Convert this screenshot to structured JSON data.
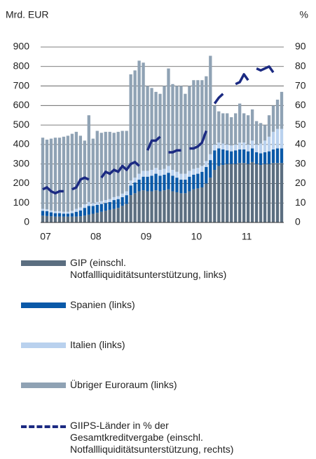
{
  "chart_data": {
    "type": "bar",
    "ylabel": "Mrd. EUR",
    "y2label": "%",
    "categories": [
      "07",
      null,
      null,
      null,
      null,
      null,
      null,
      null,
      null,
      null,
      null,
      null,
      "08",
      null,
      null,
      null,
      null,
      null,
      null,
      null,
      null,
      null,
      null,
      null,
      "09",
      null,
      null,
      null,
      null,
      null,
      null,
      null,
      null,
      null,
      null,
      null,
      "10",
      null,
      null,
      null,
      null,
      null,
      null,
      null,
      null,
      null,
      null,
      null,
      "11",
      null,
      null,
      null,
      null,
      null,
      null,
      null,
      null,
      null
    ],
    "stacked": true,
    "series": [
      {
        "name": "GIP (einschl.\nNotfallliquiditätsunterstützung, links)",
        "type": "bar",
        "color": "#5b6e80",
        "values": [
          35,
          33,
          32,
          30,
          30,
          30,
          30,
          30,
          30,
          32,
          35,
          40,
          45,
          50,
          55,
          60,
          65,
          70,
          75,
          85,
          95,
          140,
          150,
          160,
          165,
          160,
          160,
          165,
          160,
          165,
          170,
          160,
          155,
          150,
          150,
          160,
          170,
          175,
          180,
          200,
          230,
          270,
          290,
          295,
          300,
          300,
          300,
          305,
          305,
          300,
          310,
          300,
          295,
          300,
          300,
          305,
          305,
          305
        ]
      },
      {
        "name": "Spanien (links)",
        "type": "bar",
        "color": "#0a59a8",
        "values": [
          25,
          25,
          20,
          18,
          18,
          15,
          15,
          18,
          25,
          30,
          40,
          45,
          40,
          40,
          40,
          40,
          40,
          45,
          45,
          45,
          45,
          50,
          55,
          60,
          70,
          75,
          80,
          85,
          80,
          80,
          85,
          80,
          75,
          70,
          70,
          75,
          75,
          75,
          80,
          85,
          90,
          100,
          90,
          80,
          70,
          65,
          70,
          70,
          70,
          65,
          70,
          60,
          60,
          60,
          65,
          70,
          75,
          75
        ]
      },
      {
        "name": "Italien (links)",
        "type": "bar",
        "color": "#b9d1ee",
        "values": [
          10,
          10,
          10,
          10,
          10,
          10,
          10,
          12,
          15,
          15,
          18,
          20,
          15,
          15,
          15,
          15,
          15,
          15,
          15,
          18,
          20,
          25,
          25,
          30,
          30,
          30,
          30,
          30,
          30,
          30,
          35,
          30,
          30,
          30,
          30,
          30,
          30,
          30,
          30,
          30,
          30,
          30,
          30,
          30,
          30,
          30,
          30,
          35,
          35,
          35,
          40,
          40,
          50,
          60,
          75,
          90,
          100,
          100
        ]
      },
      {
        "name": "Übriger Euroraum (links)",
        "type": "bar",
        "color": "#8fa2b4",
        "values": [
          365,
          357,
          368,
          377,
          377,
          385,
          390,
          395,
          395,
          368,
          327,
          445,
          330,
          365,
          350,
          350,
          345,
          330,
          330,
          322,
          310,
          545,
          550,
          580,
          555,
          435,
          420,
          390,
          390,
          425,
          500,
          440,
          440,
          450,
          410,
          435,
          455,
          450,
          440,
          435,
          505,
          200,
          160,
          155,
          160,
          145,
          160,
          200,
          150,
          150,
          160,
          120,
          105,
          80,
          110,
          135,
          150,
          190
        ]
      },
      {
        "name": "GIIPS-Länder in % der\nGesamtkreditvergabe (einschl.\nNotfallliquiditätsunterstützung, rechts)",
        "type": "line",
        "axis": "y2",
        "color": "#1b2a82",
        "values": [
          17,
          18,
          16,
          15,
          16,
          16,
          null,
          17,
          18,
          22,
          23,
          22,
          null,
          null,
          23,
          26,
          25,
          27,
          26,
          29,
          27,
          30,
          31,
          29,
          null,
          37,
          42,
          42,
          44,
          null,
          36,
          36,
          37,
          37,
          null,
          38,
          38,
          39,
          41,
          47,
          null,
          61,
          64,
          66,
          null,
          null,
          71,
          72,
          76,
          73,
          null,
          79,
          78,
          79,
          80,
          77,
          null,
          null
        ]
      }
    ],
    "ylim": [
      0,
      900
    ],
    "yticks": [
      0,
      100,
      200,
      300,
      400,
      500,
      600,
      700,
      800,
      900
    ],
    "y2lim": [
      0,
      90
    ],
    "y2ticks": [
      0,
      10,
      20,
      30,
      40,
      50,
      60,
      70,
      80,
      90
    ],
    "grid": true
  }
}
